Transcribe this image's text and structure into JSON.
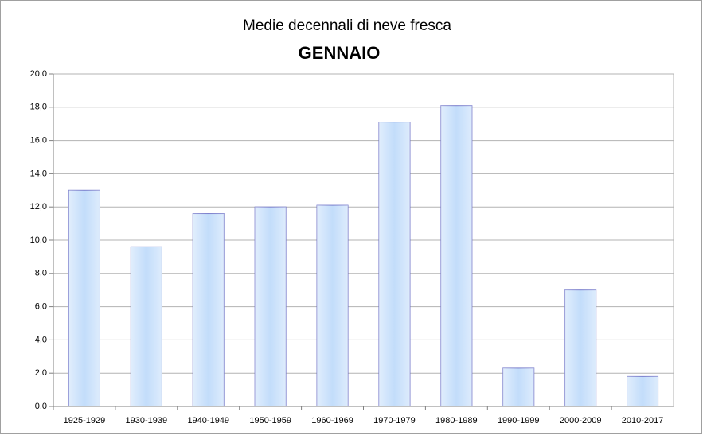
{
  "chart_data": {
    "type": "bar",
    "title": "Medie decennali di neve fresca",
    "subtitle": "GENNAIO",
    "categories": [
      "1925-1929",
      "1930-1939",
      "1940-1949",
      "1950-1959",
      "1960-1969",
      "1970-1979",
      "1980-1989",
      "1990-1999",
      "2000-2009",
      "2010-2017"
    ],
    "values": [
      13.0,
      9.6,
      11.6,
      12.0,
      12.1,
      17.1,
      18.1,
      2.3,
      7.0,
      1.8
    ],
    "color": "#bcd9fa",
    "edge_color": "#6f74c8",
    "ylim": [
      0,
      20
    ],
    "yticks": [
      {
        "value": 0,
        "label": "0,0"
      },
      {
        "value": 2,
        "label": "2,0"
      },
      {
        "value": 4,
        "label": "4,0"
      },
      {
        "value": 6,
        "label": "6,0"
      },
      {
        "value": 8,
        "label": "8,0"
      },
      {
        "value": 10,
        "label": "10,0"
      },
      {
        "value": 12,
        "label": "12,0"
      },
      {
        "value": 14,
        "label": "14,0"
      },
      {
        "value": 16,
        "label": "16,0"
      },
      {
        "value": 18,
        "label": "18,0"
      },
      {
        "value": 20,
        "label": "20,0"
      }
    ],
    "grid": true
  }
}
